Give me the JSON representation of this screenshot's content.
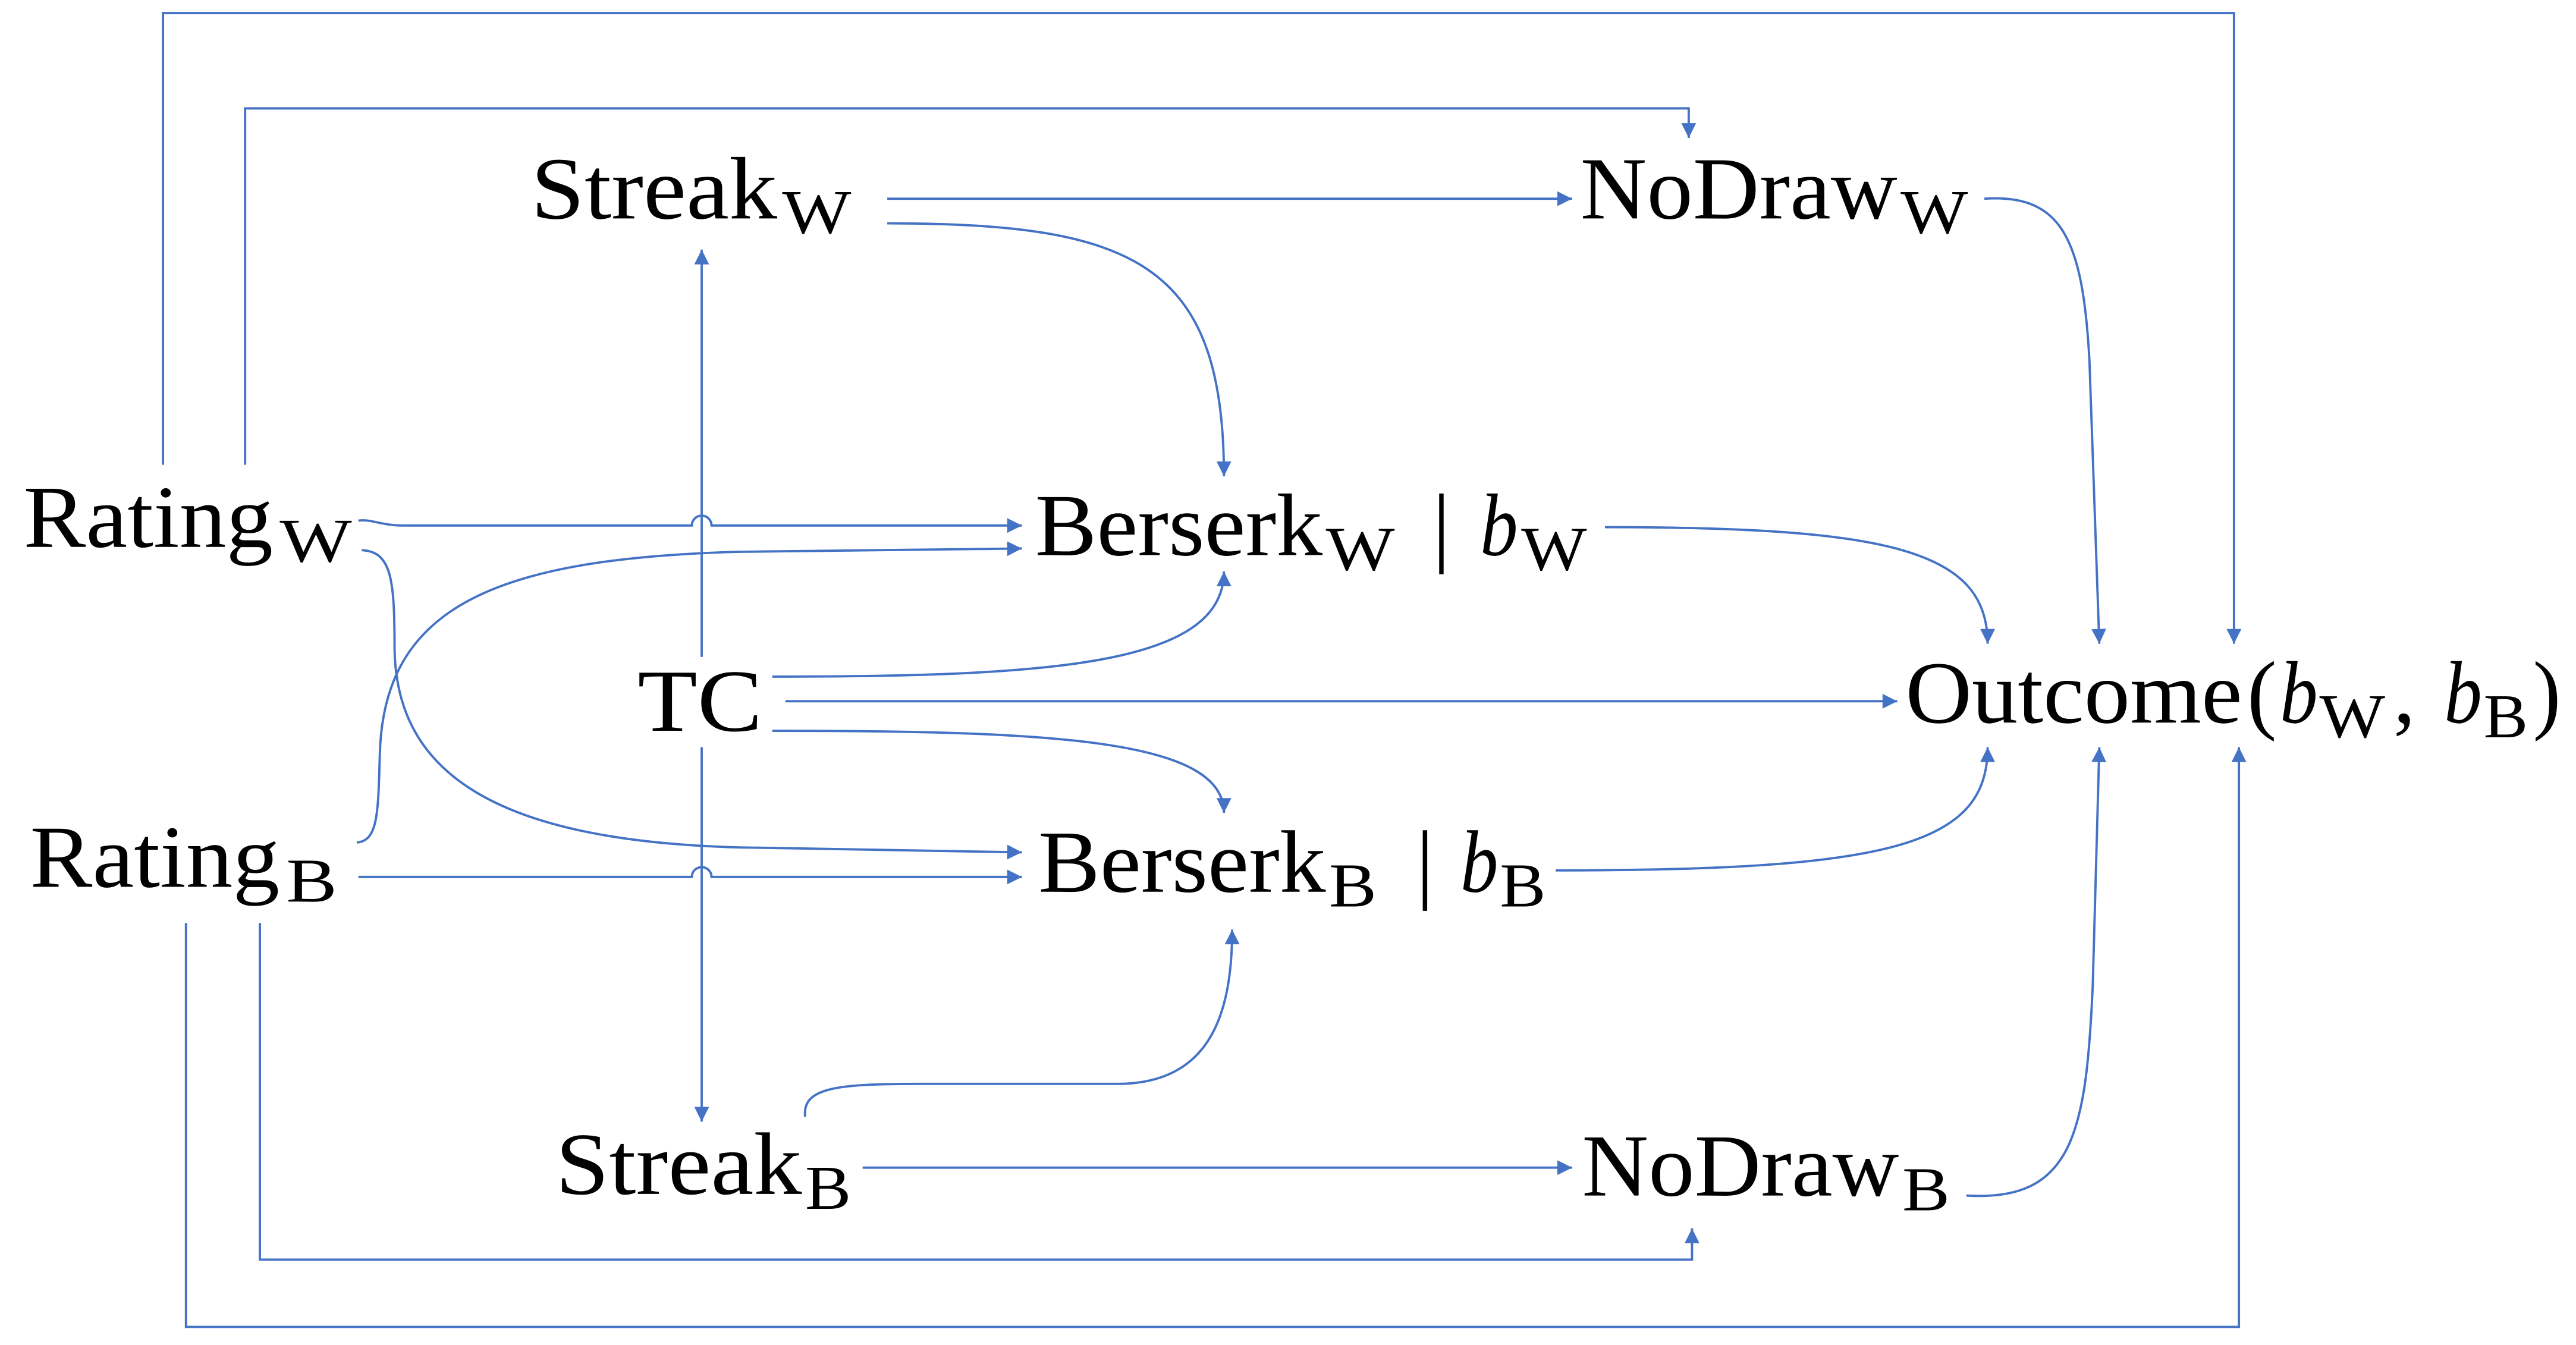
{
  "colors": {
    "edge": "#4472C4",
    "text": "#000000",
    "background": "#ffffff"
  },
  "nodes": {
    "streak_w": {
      "label": "Streak",
      "sub": "W"
    },
    "nodraw_w": {
      "label": "NoDraw",
      "sub": "W"
    },
    "rating_w": {
      "label": "Rating",
      "sub": "W"
    },
    "berserk_w": {
      "label": "Berserk",
      "sub": "W",
      "bar": "|",
      "var": "b",
      "var_sub": "W"
    },
    "tc": {
      "label": "TC"
    },
    "outcome": {
      "label": "Outcome",
      "open": "(",
      "var1": "b",
      "var1_sub": "W",
      "comma": ",",
      "var2": "b",
      "var2_sub": "B",
      "close": ")"
    },
    "rating_b": {
      "label": "Rating",
      "sub": "B"
    },
    "berserk_b": {
      "label": "Berserk",
      "sub": "B",
      "bar": "|",
      "var": "b",
      "var_sub": "B"
    },
    "streak_b": {
      "label": "Streak",
      "sub": "B"
    },
    "nodraw_b": {
      "label": "NoDraw",
      "sub": "B"
    }
  }
}
